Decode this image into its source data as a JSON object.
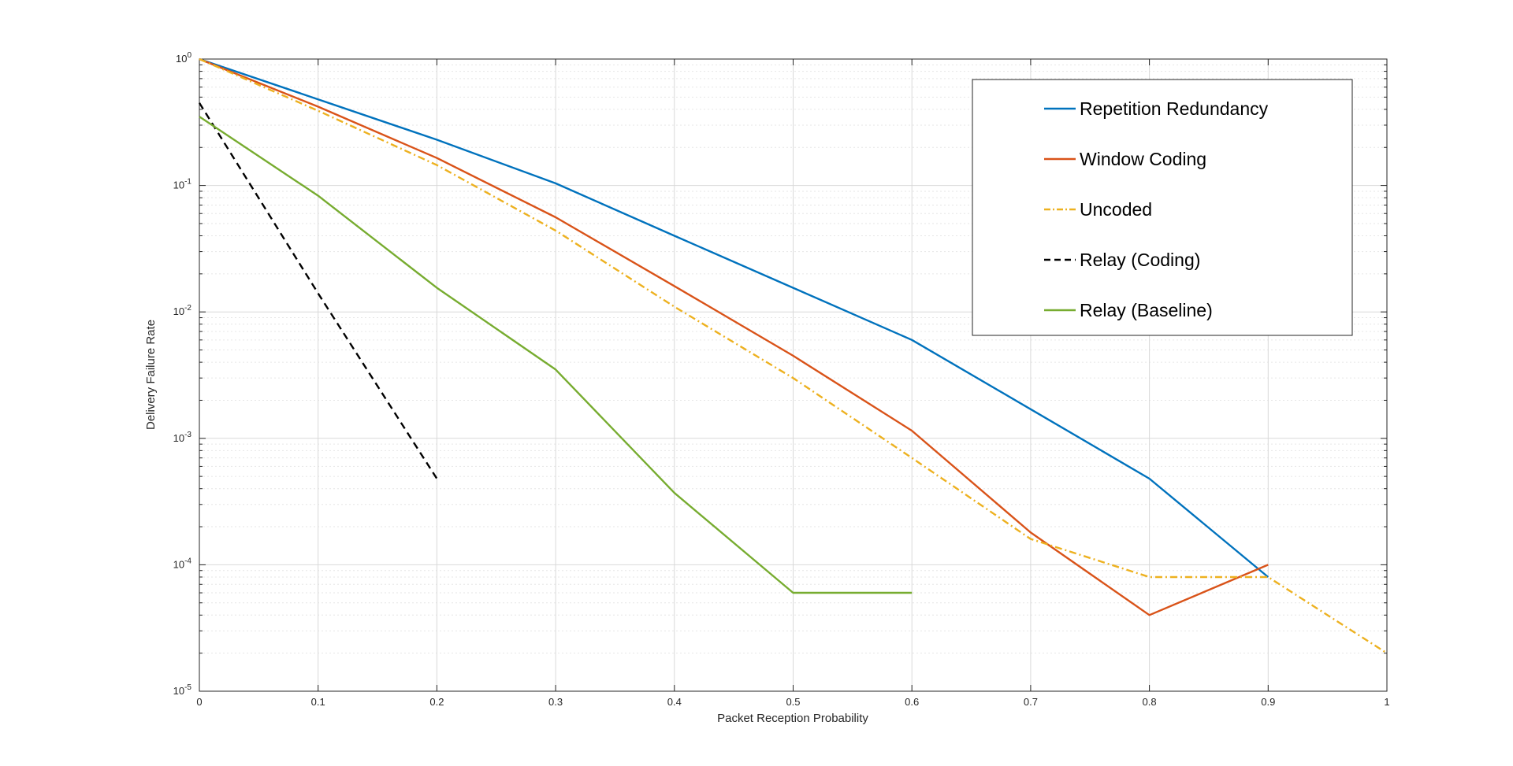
{
  "chart_data": {
    "type": "line",
    "title": "",
    "xlabel": "Packet Reception Probability",
    "ylabel": "Delivery Failure Rate",
    "xlim": [
      0,
      1
    ],
    "ylim": [
      1e-05,
      1
    ],
    "yscale": "log",
    "grid": true,
    "legend_position": "top-right",
    "x_ticks": [
      "0",
      "0.1",
      "0.2",
      "0.3",
      "0.4",
      "0.5",
      "0.6",
      "0.7",
      "0.8",
      "0.9",
      "1"
    ],
    "y_ticks": [
      {
        "base": "10",
        "exp": "0"
      },
      {
        "base": "10",
        "exp": "-1"
      },
      {
        "base": "10",
        "exp": "-2"
      },
      {
        "base": "10",
        "exp": "-3"
      },
      {
        "base": "10",
        "exp": "-4"
      },
      {
        "base": "10",
        "exp": "-5"
      }
    ],
    "series": [
      {
        "name": "Repetition Redundancy",
        "color": "#0072BD",
        "style": "solid",
        "x": [
          0,
          0.1,
          0.2,
          0.3,
          0.4,
          0.5,
          0.6,
          0.7,
          0.8,
          0.9
        ],
        "y": [
          1,
          0.48,
          0.23,
          0.104,
          0.04,
          0.0155,
          0.006,
          0.0017,
          0.00048,
          8e-05
        ]
      },
      {
        "name": "Window Coding",
        "color": "#D95319",
        "style": "solid",
        "x": [
          0,
          0.1,
          0.2,
          0.3,
          0.4,
          0.5,
          0.6,
          0.7,
          0.8,
          0.9
        ],
        "y": [
          1,
          0.42,
          0.165,
          0.056,
          0.016,
          0.0045,
          0.00115,
          0.00018,
          4e-05,
          0.0001
        ]
      },
      {
        "name": "Uncoded",
        "color": "#EDB120",
        "style": "dashdot",
        "x": [
          0,
          0.1,
          0.2,
          0.3,
          0.4,
          0.5,
          0.6,
          0.7,
          0.8,
          0.9,
          1.0
        ],
        "y": [
          1,
          0.39,
          0.145,
          0.044,
          0.011,
          0.003,
          0.0007,
          0.00016,
          8e-05,
          8e-05,
          2e-05
        ]
      },
      {
        "name": "Relay (Coding)",
        "color": "#000000",
        "style": "dashed",
        "x": [
          0,
          0.1,
          0.2
        ],
        "y": [
          0.45,
          0.014,
          0.00048
        ]
      },
      {
        "name": "Relay (Baseline)",
        "color": "#77AC30",
        "style": "solid",
        "x": [
          0,
          0.1,
          0.2,
          0.3,
          0.4,
          0.5,
          0.6
        ],
        "y": [
          0.35,
          0.083,
          0.0155,
          0.0035,
          0.00037,
          6e-05,
          6e-05
        ]
      }
    ]
  }
}
